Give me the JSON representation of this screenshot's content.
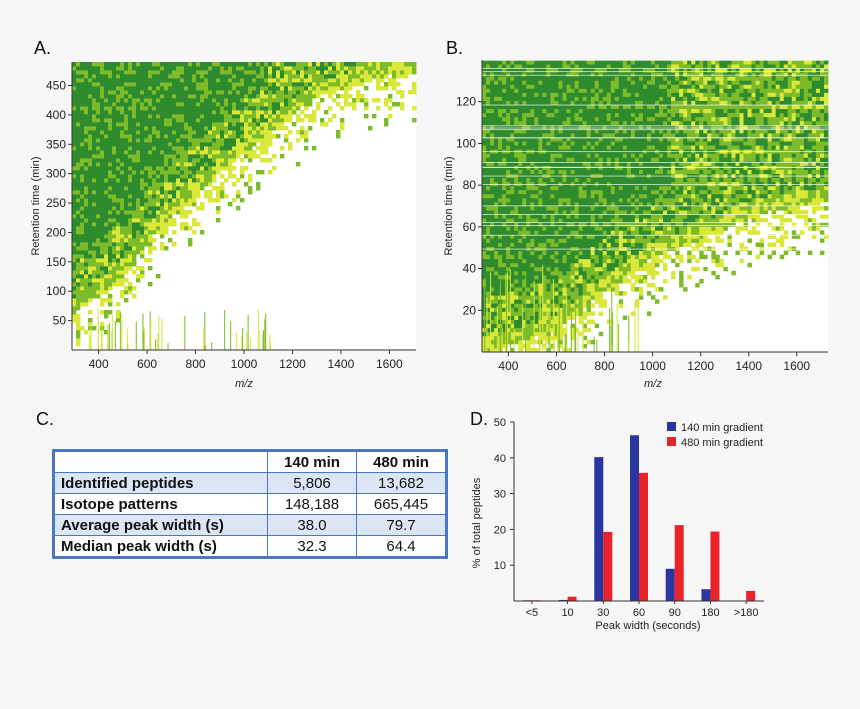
{
  "panels": {
    "a_label": "A.",
    "b_label": "B.",
    "c_label": "C.",
    "d_label": "D."
  },
  "colors": {
    "heat_dark": "#2e8b2e",
    "heat_mid": "#7dbb2a",
    "heat_light": "#d9e83a",
    "bar_140": "#2a35a0",
    "bar_480": "#e8232a",
    "table_border": "#4a78c2",
    "table_shade": "#dbe5f3"
  },
  "chart_data": [
    {
      "id": "A",
      "type": "heatmap",
      "title": "",
      "xlabel": "m/z",
      "ylabel": "Retention time (min)",
      "xlim": [
        290,
        1710
      ],
      "ylim": [
        0,
        490
      ],
      "x_ticks": [
        400,
        600,
        800,
        1000,
        1200,
        1400,
        1600
      ],
      "y_ticks": [
        50,
        100,
        150,
        200,
        250,
        300,
        350,
        400,
        450
      ],
      "density_front": [
        [
          290,
          60
        ],
        [
          500,
          130
        ],
        [
          700,
          230
        ],
        [
          900,
          300
        ],
        [
          1100,
          370
        ],
        [
          1300,
          430
        ],
        [
          1500,
          460
        ],
        [
          1710,
          475
        ]
      ]
    },
    {
      "id": "B",
      "type": "heatmap",
      "title": "",
      "xlabel": "m/z",
      "ylabel": "Retention time (min)",
      "xlim": [
        290,
        1730
      ],
      "ylim": [
        0,
        140
      ],
      "x_ticks": [
        400,
        600,
        800,
        1000,
        1200,
        1400,
        1600
      ],
      "y_ticks": [
        20,
        40,
        60,
        80,
        100,
        120
      ],
      "density_front": [
        [
          290,
          0
        ],
        [
          600,
          10
        ],
        [
          800,
          30
        ],
        [
          1000,
          45
        ],
        [
          1200,
          55
        ],
        [
          1400,
          65
        ],
        [
          1600,
          70
        ],
        [
          1730,
          72
        ]
      ]
    },
    {
      "id": "D",
      "type": "bar",
      "title": "",
      "xlabel": "Peak width (seconds)",
      "ylabel": "% of total peptides",
      "ylim": [
        0,
        50
      ],
      "y_ticks": [
        10,
        20,
        30,
        40,
        50
      ],
      "categories": [
        "<5",
        "10",
        "30",
        "60",
        "90",
        "180",
        ">180"
      ],
      "legend_position": "top-right",
      "series": [
        {
          "name": "140 min gradient",
          "values": [
            0.2,
            0.3,
            40.2,
            46.3,
            9.0,
            3.3,
            0
          ]
        },
        {
          "name": "480 min gradient",
          "values": [
            0.2,
            1.2,
            19.3,
            35.8,
            21.2,
            19.4,
            2.8
          ]
        }
      ]
    }
  ],
  "table": {
    "headers": [
      "",
      "140 min",
      "480 min"
    ],
    "rows": [
      {
        "label": "Identified peptides",
        "v140": "5,806",
        "v480": "13,682"
      },
      {
        "label": "Isotope patterns",
        "v140": "148,188",
        "v480": "665,445"
      },
      {
        "label": "Average peak width (s)",
        "v140": "38.0",
        "v480": "79.7"
      },
      {
        "label": "Median peak width (s)",
        "v140": "32.3",
        "v480": "64.4"
      }
    ]
  }
}
